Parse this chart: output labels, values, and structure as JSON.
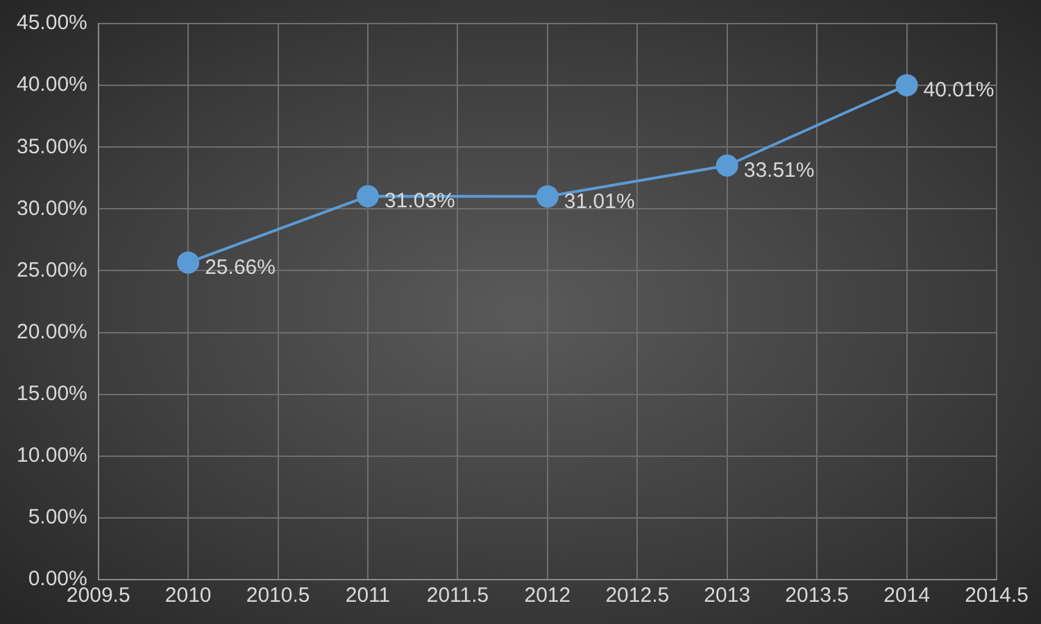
{
  "chart_data": {
    "type": "line",
    "x": [
      2010,
      2011,
      2012,
      2013,
      2014
    ],
    "series": [
      {
        "color": "#5b9bd5",
        "values": [
          25.66,
          31.03,
          31.01,
          33.51,
          40.01
        ],
        "value_labels": [
          "25.66%",
          "31.03%",
          "31.01%",
          "33.51%",
          "40.01%"
        ]
      }
    ],
    "xlim": [
      2009.5,
      2014.5
    ],
    "xticks": [
      2009.5,
      2010,
      2010.5,
      2011,
      2011.5,
      2012,
      2012.5,
      2013,
      2013.5,
      2014,
      2014.5
    ],
    "ylim": [
      0,
      45
    ],
    "yticks": [
      {
        "value": 0,
        "label": "0.00%"
      },
      {
        "value": 5,
        "label": "5.00%"
      },
      {
        "value": 10,
        "label": "10.00%"
      },
      {
        "value": 15,
        "label": "15.00%"
      },
      {
        "value": 20,
        "label": "20.00%"
      },
      {
        "value": 25,
        "label": "25.00%"
      },
      {
        "value": 30,
        "label": "30.00%"
      },
      {
        "value": 35,
        "label": "35.00%"
      },
      {
        "value": 40,
        "label": "40.00%"
      },
      {
        "value": 45,
        "label": "45.00%"
      }
    ],
    "grid": true,
    "legend": false,
    "marker": "circle",
    "line_style": "solid"
  }
}
